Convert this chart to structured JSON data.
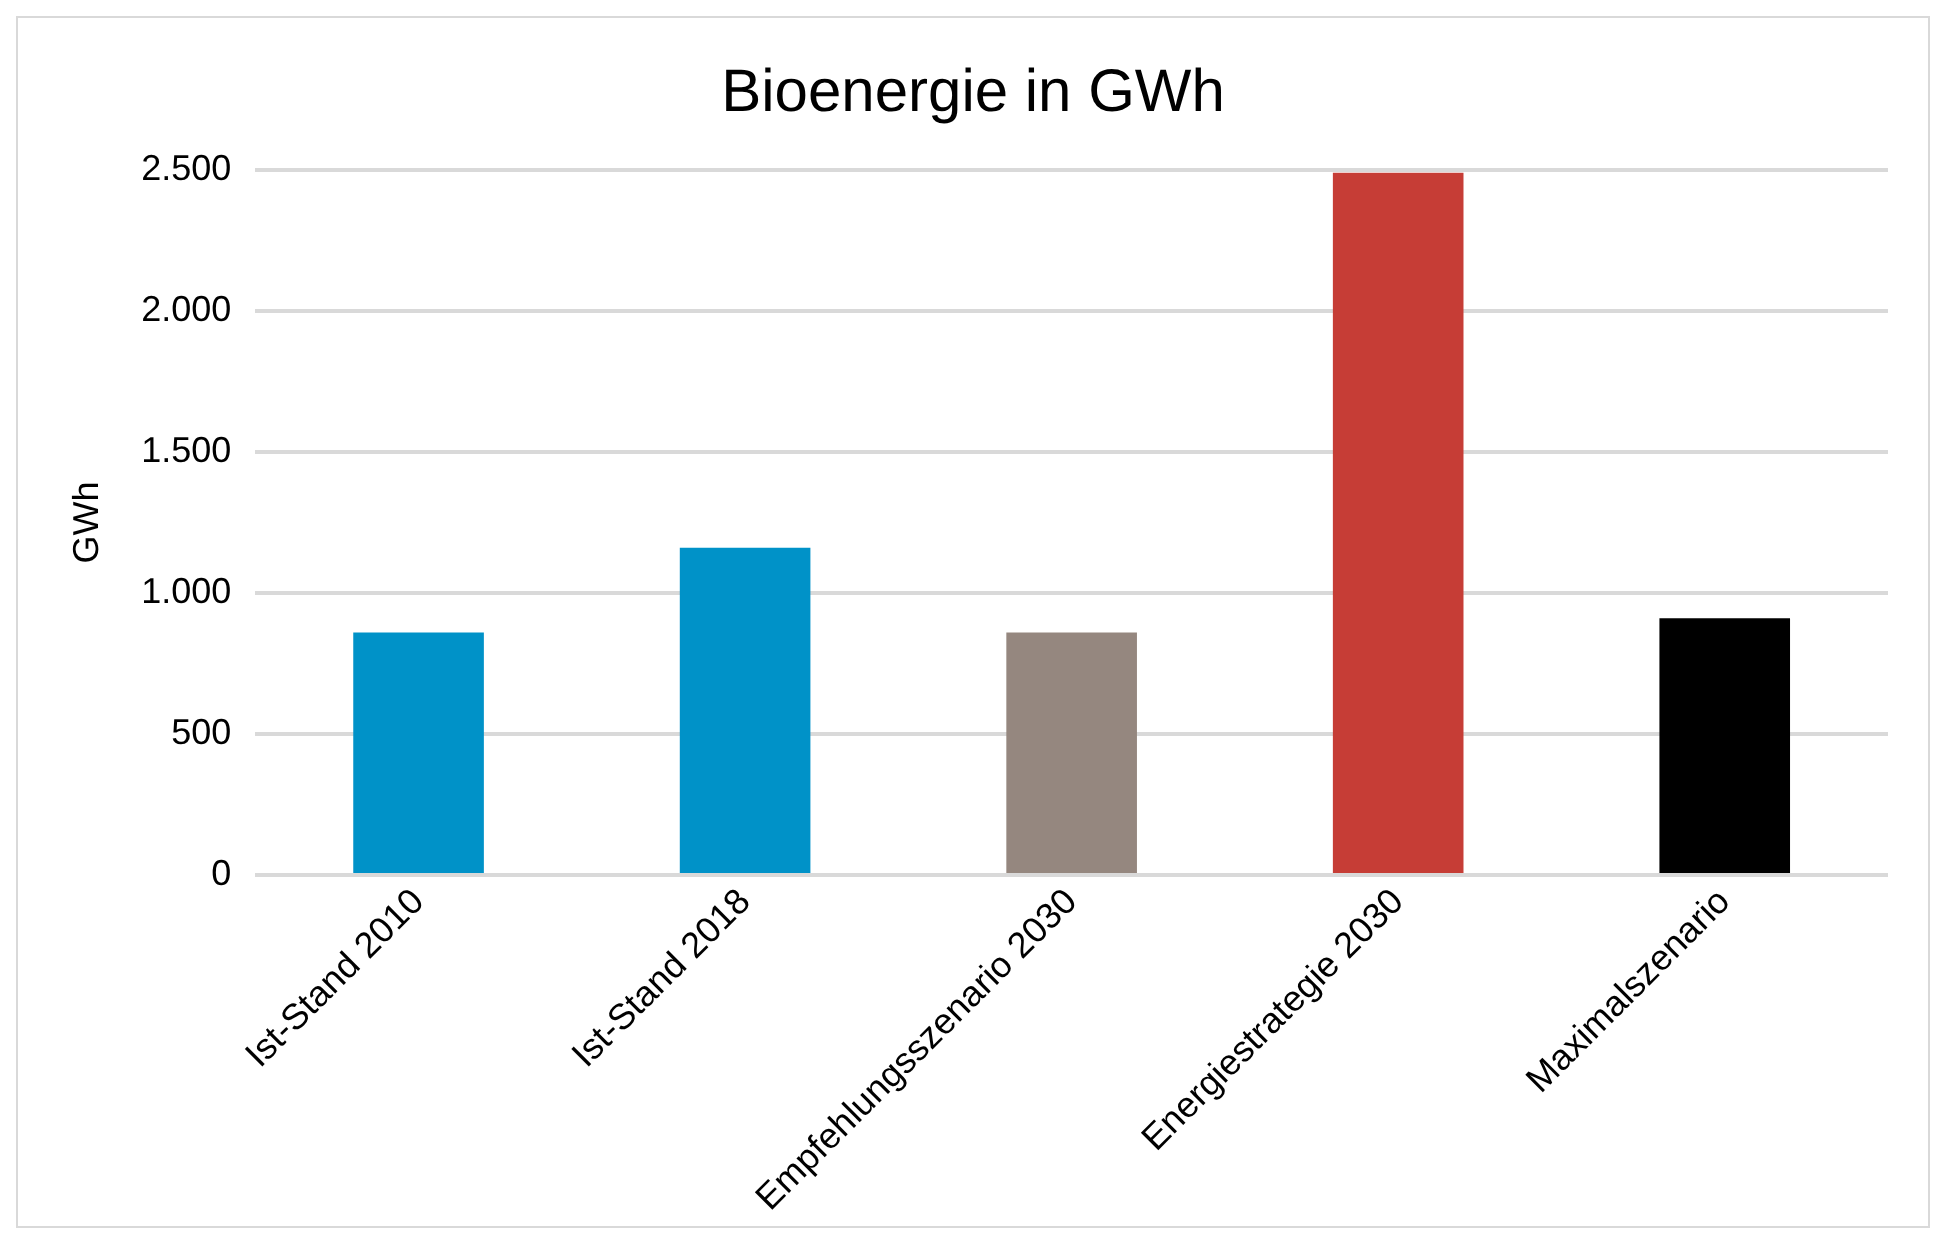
{
  "chart_data": {
    "type": "bar",
    "title": "Bioenergie in GWh",
    "ylabel": "GWh",
    "categories": [
      "Ist-Stand 2010",
      "Ist-Stand 2018",
      "Empfehlungsszenario 2030",
      "Energiestrategie 2030",
      "Maximalszenario"
    ],
    "values": [
      860,
      1160,
      860,
      2490,
      910
    ],
    "colors": [
      "#0092c8",
      "#0092c8",
      "#95877f",
      "#c63d36",
      "#000000"
    ],
    "ylim": [
      0,
      2500
    ],
    "yticks": [
      0,
      {
        "value": 500,
        "label": "500"
      },
      {
        "value": 1000,
        "label": "1.000"
      },
      {
        "value": 1500,
        "label": "1.500"
      },
      {
        "value": 2000,
        "label": "2.000"
      },
      {
        "value": 2500,
        "label": "2.500"
      }
    ],
    "grid": "y"
  }
}
